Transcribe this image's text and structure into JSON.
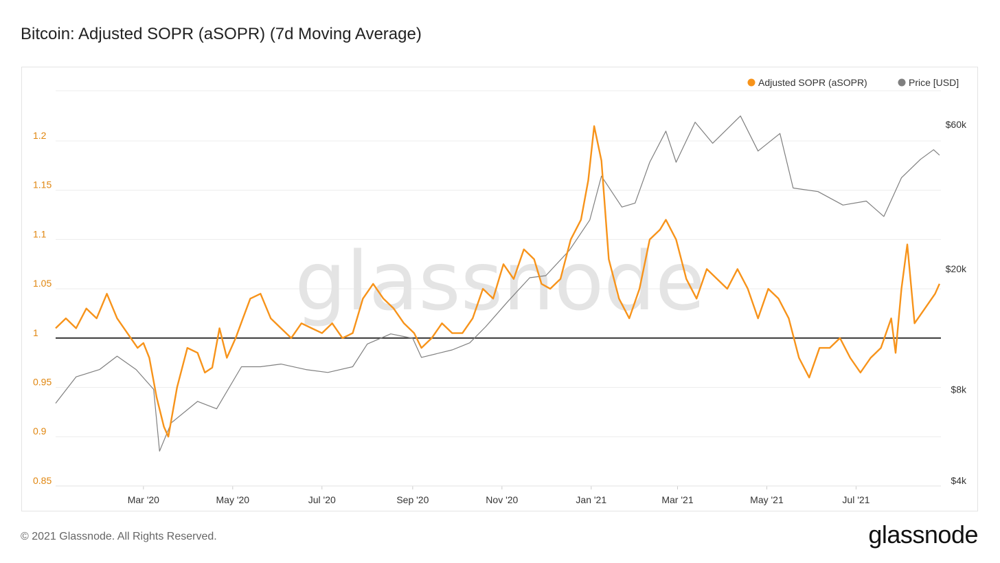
{
  "page": {
    "title": "Bitcoin: Adjusted SOPR (aSOPR) (7d Moving Average)",
    "footer": "© 2021 Glassnode. All Rights Reserved.",
    "brand": "glassnode",
    "watermark": "glassnode"
  },
  "chart_data": {
    "type": "line",
    "legend": [
      {
        "name": "Adjusted SOPR (aSOPR)",
        "color": "#f7931a"
      },
      {
        "name": "Price [USD]",
        "color": "#7f7f7f"
      }
    ],
    "legend_position": "top-right",
    "x_ticks": [
      "Mar '20",
      "May '20",
      "Jul '20",
      "Sep '20",
      "Nov '20",
      "Jan '21",
      "Mar '21",
      "May '21",
      "Jul '21"
    ],
    "y_left": {
      "ticks": [
        "1.2",
        "1.15",
        "1.1",
        "1.05",
        "1",
        "0.95",
        "0.9",
        "0.85"
      ],
      "range": [
        0.85,
        1.2
      ],
      "color": "#e0860f"
    },
    "y_right": {
      "ticks": [
        "$60k",
        "$20k",
        "$8k",
        "$4k"
      ],
      "scale": "log",
      "range": [
        4000,
        60000
      ]
    },
    "reference_line": {
      "y": 1,
      "color": "#333333"
    },
    "grid": true,
    "series": [
      {
        "name": "Adjusted SOPR (aSOPR)",
        "axis": "left",
        "color": "#f7931a",
        "points": [
          [
            "2020-01-01",
            1.01
          ],
          [
            "2020-01-08",
            1.02
          ],
          [
            "2020-01-15",
            1.01
          ],
          [
            "2020-01-22",
            1.03
          ],
          [
            "2020-01-29",
            1.02
          ],
          [
            "2020-02-05",
            1.045
          ],
          [
            "2020-02-12",
            1.02
          ],
          [
            "2020-02-19",
            1.005
          ],
          [
            "2020-02-26",
            0.99
          ],
          [
            "2020-03-01",
            0.995
          ],
          [
            "2020-03-05",
            0.98
          ],
          [
            "2020-03-10",
            0.94
          ],
          [
            "2020-03-15",
            0.91
          ],
          [
            "2020-03-18",
            0.9
          ],
          [
            "2020-03-24",
            0.95
          ],
          [
            "2020-03-31",
            0.99
          ],
          [
            "2020-04-07",
            0.985
          ],
          [
            "2020-04-12",
            0.965
          ],
          [
            "2020-04-17",
            0.97
          ],
          [
            "2020-04-22",
            1.01
          ],
          [
            "2020-04-27",
            0.98
          ],
          [
            "2020-05-03",
            1.0
          ],
          [
            "2020-05-08",
            1.02
          ],
          [
            "2020-05-13",
            1.04
          ],
          [
            "2020-05-20",
            1.045
          ],
          [
            "2020-05-27",
            1.02
          ],
          [
            "2020-06-03",
            1.01
          ],
          [
            "2020-06-10",
            1.0
          ],
          [
            "2020-06-17",
            1.015
          ],
          [
            "2020-06-24",
            1.01
          ],
          [
            "2020-07-01",
            1.005
          ],
          [
            "2020-07-08",
            1.015
          ],
          [
            "2020-07-15",
            1.0
          ],
          [
            "2020-07-22",
            1.005
          ],
          [
            "2020-07-29",
            1.04
          ],
          [
            "2020-08-05",
            1.055
          ],
          [
            "2020-08-12",
            1.04
          ],
          [
            "2020-08-19",
            1.03
          ],
          [
            "2020-08-26",
            1.015
          ],
          [
            "2020-09-02",
            1.005
          ],
          [
            "2020-09-07",
            0.99
          ],
          [
            "2020-09-14",
            1.0
          ],
          [
            "2020-09-21",
            1.015
          ],
          [
            "2020-09-28",
            1.005
          ],
          [
            "2020-10-05",
            1.005
          ],
          [
            "2020-10-12",
            1.02
          ],
          [
            "2020-10-19",
            1.05
          ],
          [
            "2020-10-26",
            1.04
          ],
          [
            "2020-11-02",
            1.075
          ],
          [
            "2020-11-09",
            1.06
          ],
          [
            "2020-11-16",
            1.09
          ],
          [
            "2020-11-23",
            1.08
          ],
          [
            "2020-11-28",
            1.055
          ],
          [
            "2020-12-04",
            1.05
          ],
          [
            "2020-12-11",
            1.06
          ],
          [
            "2020-12-18",
            1.1
          ],
          [
            "2020-12-25",
            1.12
          ],
          [
            "2020-12-30",
            1.16
          ],
          [
            "2021-01-03",
            1.215
          ],
          [
            "2021-01-08",
            1.18
          ],
          [
            "2021-01-13",
            1.08
          ],
          [
            "2021-01-20",
            1.04
          ],
          [
            "2021-01-27",
            1.02
          ],
          [
            "2021-02-03",
            1.05
          ],
          [
            "2021-02-10",
            1.1
          ],
          [
            "2021-02-17",
            1.11
          ],
          [
            "2021-02-21",
            1.12
          ],
          [
            "2021-02-28",
            1.1
          ],
          [
            "2021-03-07",
            1.06
          ],
          [
            "2021-03-14",
            1.04
          ],
          [
            "2021-03-21",
            1.07
          ],
          [
            "2021-03-28",
            1.06
          ],
          [
            "2021-04-04",
            1.05
          ],
          [
            "2021-04-11",
            1.07
          ],
          [
            "2021-04-18",
            1.05
          ],
          [
            "2021-04-25",
            1.02
          ],
          [
            "2021-05-02",
            1.05
          ],
          [
            "2021-05-09",
            1.04
          ],
          [
            "2021-05-16",
            1.02
          ],
          [
            "2021-05-23",
            0.98
          ],
          [
            "2021-05-30",
            0.96
          ],
          [
            "2021-06-06",
            0.99
          ],
          [
            "2021-06-13",
            0.99
          ],
          [
            "2021-06-20",
            1.0
          ],
          [
            "2021-06-27",
            0.98
          ],
          [
            "2021-07-04",
            0.965
          ],
          [
            "2021-07-11",
            0.98
          ],
          [
            "2021-07-18",
            0.99
          ],
          [
            "2021-07-25",
            1.02
          ],
          [
            "2021-07-28",
            0.985
          ],
          [
            "2021-08-01",
            1.05
          ],
          [
            "2021-08-05",
            1.095
          ],
          [
            "2021-08-10",
            1.015
          ],
          [
            "2021-08-17",
            1.03
          ],
          [
            "2021-08-24",
            1.045
          ],
          [
            "2021-08-27",
            1.055
          ]
        ]
      },
      {
        "name": "Price [USD]",
        "axis": "right",
        "color": "#7f7f7f",
        "points": [
          [
            "2020-01-01",
            7200
          ],
          [
            "2020-01-15",
            8800
          ],
          [
            "2020-01-31",
            9300
          ],
          [
            "2020-02-12",
            10300
          ],
          [
            "2020-02-25",
            9300
          ],
          [
            "2020-03-08",
            8000
          ],
          [
            "2020-03-12",
            5000
          ],
          [
            "2020-03-20",
            6200
          ],
          [
            "2020-04-07",
            7300
          ],
          [
            "2020-04-20",
            6900
          ],
          [
            "2020-05-07",
            9500
          ],
          [
            "2020-05-20",
            9500
          ],
          [
            "2020-06-03",
            9700
          ],
          [
            "2020-06-20",
            9300
          ],
          [
            "2020-07-05",
            9100
          ],
          [
            "2020-07-22",
            9500
          ],
          [
            "2020-08-01",
            11300
          ],
          [
            "2020-08-17",
            12200
          ],
          [
            "2020-09-01",
            11800
          ],
          [
            "2020-09-07",
            10200
          ],
          [
            "2020-09-28",
            10800
          ],
          [
            "2020-10-10",
            11400
          ],
          [
            "2020-10-21",
            12900
          ],
          [
            "2020-11-05",
            15600
          ],
          [
            "2020-11-20",
            18700
          ],
          [
            "2020-12-01",
            19000
          ],
          [
            "2020-12-17",
            23000
          ],
          [
            "2020-12-31",
            29000
          ],
          [
            "2021-01-08",
            40500
          ],
          [
            "2021-01-22",
            32000
          ],
          [
            "2021-01-31",
            33000
          ],
          [
            "2021-02-10",
            45000
          ],
          [
            "2021-02-21",
            57000
          ],
          [
            "2021-02-28",
            45000
          ],
          [
            "2021-03-13",
            61000
          ],
          [
            "2021-03-25",
            52000
          ],
          [
            "2021-04-13",
            64000
          ],
          [
            "2021-04-25",
            49000
          ],
          [
            "2021-05-10",
            56000
          ],
          [
            "2021-05-19",
            37000
          ],
          [
            "2021-06-05",
            36000
          ],
          [
            "2021-06-22",
            32500
          ],
          [
            "2021-07-08",
            33500
          ],
          [
            "2021-07-20",
            29800
          ],
          [
            "2021-08-01",
            40000
          ],
          [
            "2021-08-14",
            46000
          ],
          [
            "2021-08-23",
            49500
          ],
          [
            "2021-08-27",
            47500
          ]
        ]
      }
    ]
  }
}
